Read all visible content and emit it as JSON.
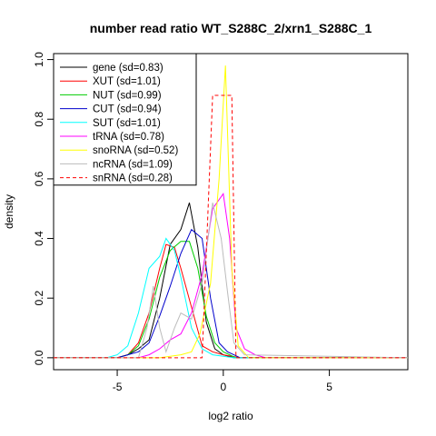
{
  "chart_data": {
    "type": "line",
    "title": "number read ratio WT_S288C_2/xrn1_S288C_1",
    "xlabel": "log2 ratio",
    "ylabel": "density",
    "xlim": [
      -8.0,
      8.7
    ],
    "ylim": [
      -0.04,
      1.02
    ],
    "x_ticks": [
      -5,
      0,
      5
    ],
    "x_tick_labels": [
      "-5",
      "0",
      "5"
    ],
    "y_ticks": [
      0.0,
      0.2,
      0.4,
      0.6,
      0.8,
      1.0
    ],
    "y_tick_labels": [
      "0.0",
      "0.2",
      "0.4",
      "0.6",
      "0.8",
      "1.0"
    ],
    "grid": false,
    "legend_position": "top-left",
    "series": [
      {
        "name": "gene (sd=0.83)",
        "color": "#000000",
        "dash": "solid",
        "points": [
          [
            -8,
            0
          ],
          [
            -5,
            0
          ],
          [
            -4.5,
            0.01
          ],
          [
            -4,
            0.03
          ],
          [
            -3.5,
            0.06
          ],
          [
            -3,
            0.2
          ],
          [
            -2.5,
            0.38
          ],
          [
            -2,
            0.43
          ],
          [
            -1.6,
            0.52
          ],
          [
            -1.2,
            0.37
          ],
          [
            -0.8,
            0.12
          ],
          [
            -0.4,
            0.03
          ],
          [
            0,
            0.01
          ],
          [
            0.5,
            0
          ],
          [
            8.7,
            0
          ]
        ]
      },
      {
        "name": "XUT (sd=1.01)",
        "color": "#ff0000",
        "dash": "solid",
        "points": [
          [
            -8,
            0
          ],
          [
            -5,
            0
          ],
          [
            -4.5,
            0.01
          ],
          [
            -4,
            0.05
          ],
          [
            -3.5,
            0.15
          ],
          [
            -3,
            0.3
          ],
          [
            -2.7,
            0.38
          ],
          [
            -2.3,
            0.37
          ],
          [
            -2,
            0.3
          ],
          [
            -1.5,
            0.17
          ],
          [
            -1,
            0.04
          ],
          [
            -0.5,
            0.02
          ],
          [
            0,
            0.01
          ],
          [
            0.8,
            0
          ],
          [
            8.7,
            0
          ]
        ]
      },
      {
        "name": "NUT (sd=0.99)",
        "color": "#00cc00",
        "dash": "solid",
        "points": [
          [
            -8,
            0
          ],
          [
            -5,
            0
          ],
          [
            -4.5,
            0.01
          ],
          [
            -4,
            0.04
          ],
          [
            -3.5,
            0.13
          ],
          [
            -3,
            0.27
          ],
          [
            -2.5,
            0.36
          ],
          [
            -2,
            0.39
          ],
          [
            -1.6,
            0.39
          ],
          [
            -1.2,
            0.3
          ],
          [
            -0.8,
            0.14
          ],
          [
            -0.4,
            0.05
          ],
          [
            0,
            0.02
          ],
          [
            0.6,
            0
          ],
          [
            8.7,
            0
          ]
        ]
      },
      {
        "name": "CUT (sd=0.94)",
        "color": "#0000cc",
        "dash": "solid",
        "points": [
          [
            -8,
            0
          ],
          [
            -5,
            0
          ],
          [
            -4.5,
            0.01
          ],
          [
            -4,
            0.02
          ],
          [
            -3.5,
            0.05
          ],
          [
            -3,
            0.14
          ],
          [
            -2.5,
            0.24
          ],
          [
            -2,
            0.35
          ],
          [
            -1.5,
            0.43
          ],
          [
            -1,
            0.4
          ],
          [
            -0.6,
            0.2
          ],
          [
            -0.2,
            0.05
          ],
          [
            0.2,
            0.02
          ],
          [
            0.8,
            0
          ],
          [
            8.7,
            0
          ]
        ]
      },
      {
        "name": "SUT (sd=1.01)",
        "color": "#00ffff",
        "dash": "solid",
        "points": [
          [
            -8,
            0
          ],
          [
            -5.5,
            0
          ],
          [
            -5,
            0.01
          ],
          [
            -4.5,
            0.04
          ],
          [
            -4,
            0.15
          ],
          [
            -3.5,
            0.3
          ],
          [
            -3,
            0.34
          ],
          [
            -2.7,
            0.4
          ],
          [
            -2.3,
            0.36
          ],
          [
            -2,
            0.27
          ],
          [
            -1.5,
            0.1
          ],
          [
            -1,
            0.03
          ],
          [
            -0.5,
            0.01
          ],
          [
            0.5,
            0
          ],
          [
            8.7,
            0
          ]
        ]
      },
      {
        "name": "tRNA (sd=0.78)",
        "color": "#ff00ff",
        "dash": "solid",
        "points": [
          [
            -8,
            0
          ],
          [
            -4,
            0
          ],
          [
            -3.5,
            0.01
          ],
          [
            -3,
            0.03
          ],
          [
            -2.5,
            0.06
          ],
          [
            -2,
            0.08
          ],
          [
            -1.5,
            0.15
          ],
          [
            -1,
            0.28
          ],
          [
            -0.5,
            0.5
          ],
          [
            0,
            0.55
          ],
          [
            0.3,
            0.4
          ],
          [
            0.6,
            0.1
          ],
          [
            1,
            0.03
          ],
          [
            1.5,
            0.01
          ],
          [
            2,
            0
          ],
          [
            8.7,
            0
          ]
        ]
      },
      {
        "name": "snoRNA (sd=0.52)",
        "color": "#ffff00",
        "dash": "solid",
        "points": [
          [
            -8,
            0
          ],
          [
            -3,
            0
          ],
          [
            -2,
            0.01
          ],
          [
            -1.5,
            0.02
          ],
          [
            -1.1,
            0.08
          ],
          [
            -0.6,
            0.25
          ],
          [
            -0.2,
            0.6
          ],
          [
            0.1,
            0.98
          ],
          [
            0.4,
            0.3
          ],
          [
            0.7,
            0.04
          ],
          [
            1.2,
            0
          ],
          [
            8.7,
            0
          ]
        ]
      },
      {
        "name": "ncRNA (sd=1.09)",
        "color": "#bbbbbb",
        "dash": "solid",
        "points": [
          [
            -8,
            0
          ],
          [
            -4,
            0
          ],
          [
            -3.6,
            0.1
          ],
          [
            -3.3,
            0.24
          ],
          [
            -3,
            0.1
          ],
          [
            -2.7,
            0.02
          ],
          [
            -2.3,
            0.1
          ],
          [
            -2,
            0.15
          ],
          [
            -1.5,
            0.13
          ],
          [
            -1,
            0.25
          ],
          [
            -0.5,
            0.52
          ],
          [
            -0.1,
            0.4
          ],
          [
            0.2,
            0.22
          ],
          [
            0.5,
            0.05
          ],
          [
            1,
            0.01
          ],
          [
            8.7,
            0
          ]
        ]
      },
      {
        "name": "snRNA (sd=0.28)",
        "color": "#ff0000",
        "dash": "dashed",
        "points": [
          [
            -8,
            0
          ],
          [
            -1,
            0
          ],
          [
            -0.5,
            0.88
          ],
          [
            0.4,
            0.88
          ],
          [
            0.6,
            0
          ],
          [
            8.7,
            0
          ]
        ]
      }
    ]
  }
}
